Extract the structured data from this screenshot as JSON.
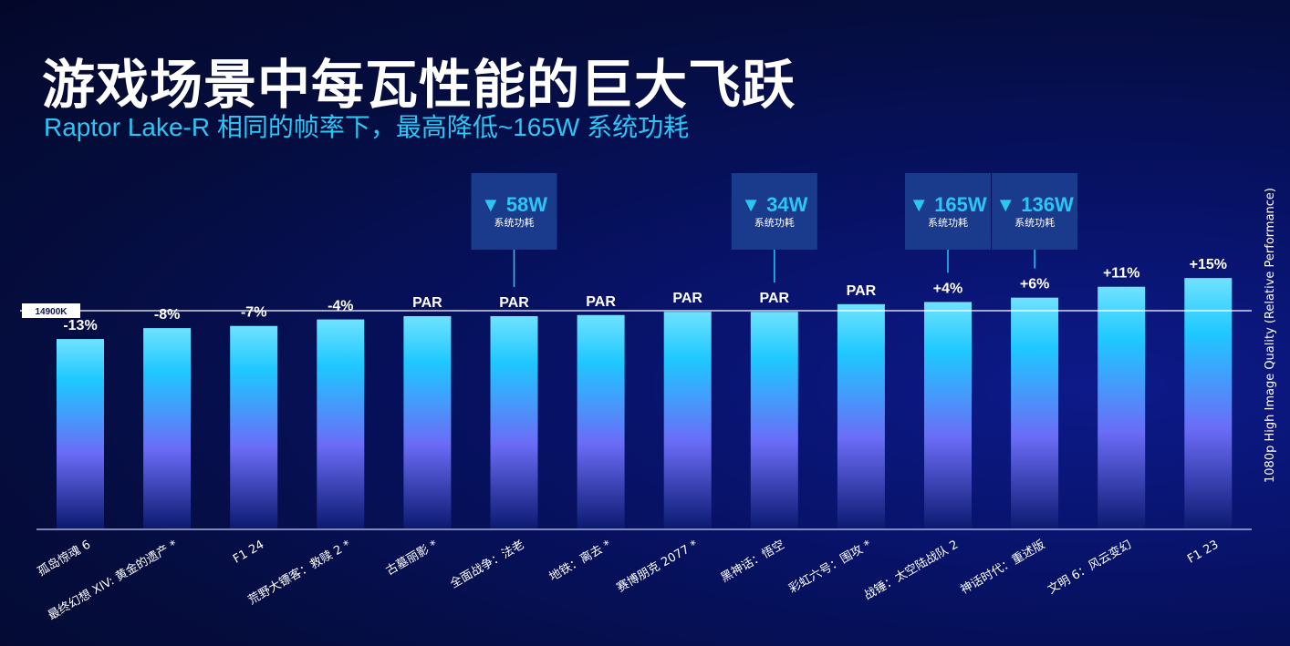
{
  "header": {
    "title": "游戏场景中每瓦性能的巨大飞跃",
    "subtitle": "Raptor Lake-R 相同的帧率下，最高降低~165W 系统功耗"
  },
  "colors": {
    "accent": "#2cc6f5",
    "bar_top": "#6fe2ff",
    "bar_mid": "#1ec8ff",
    "bar_low": "#6b6cf7",
    "bar_bottom": "#0c1a70",
    "callout_bg": "#1a3a8c"
  },
  "chart_data": {
    "type": "bar",
    "ylabel": "1080p High Image Quality (Relative Performance)",
    "reference_label": "14900K",
    "reference_value": 100,
    "ylim": [
      0,
      130
    ],
    "categories": [
      "孤岛惊魂 6",
      "最终幻想 XIV: 黄金的遗产 *",
      "F1 24",
      "荒野大镖客：救赎 2 *",
      "古墓丽影 *",
      "全面战争：法老",
      "地铁：离去 *",
      "赛博朋克 2077 *",
      "黑神话：悟空",
      "彩虹六号：围攻 *",
      "战锤：太空陆战队 2",
      "神话时代：重述版",
      "文明 6：风云变幻",
      "F1 23"
    ],
    "values": [
      87,
      92,
      93,
      96,
      97.5,
      97.5,
      98,
      99.5,
      99.5,
      103,
      104,
      106,
      111,
      115
    ],
    "data_labels": [
      "-13%",
      "-8%",
      "-7%",
      "-4%",
      "PAR",
      "PAR",
      "PAR",
      "PAR",
      "PAR",
      "PAR",
      "+4%",
      "+6%",
      "+11%",
      "+15%"
    ],
    "callouts": [
      {
        "index": 5,
        "text": "▼ 58W",
        "sub": "系统功耗"
      },
      {
        "index": 8,
        "text": "▼ 34W",
        "sub": "系统功耗"
      },
      {
        "index": 10,
        "text": "▼ 165W",
        "sub": "系统功耗"
      },
      {
        "index": 11,
        "text": "▼ 136W",
        "sub": "系统功耗"
      }
    ]
  }
}
